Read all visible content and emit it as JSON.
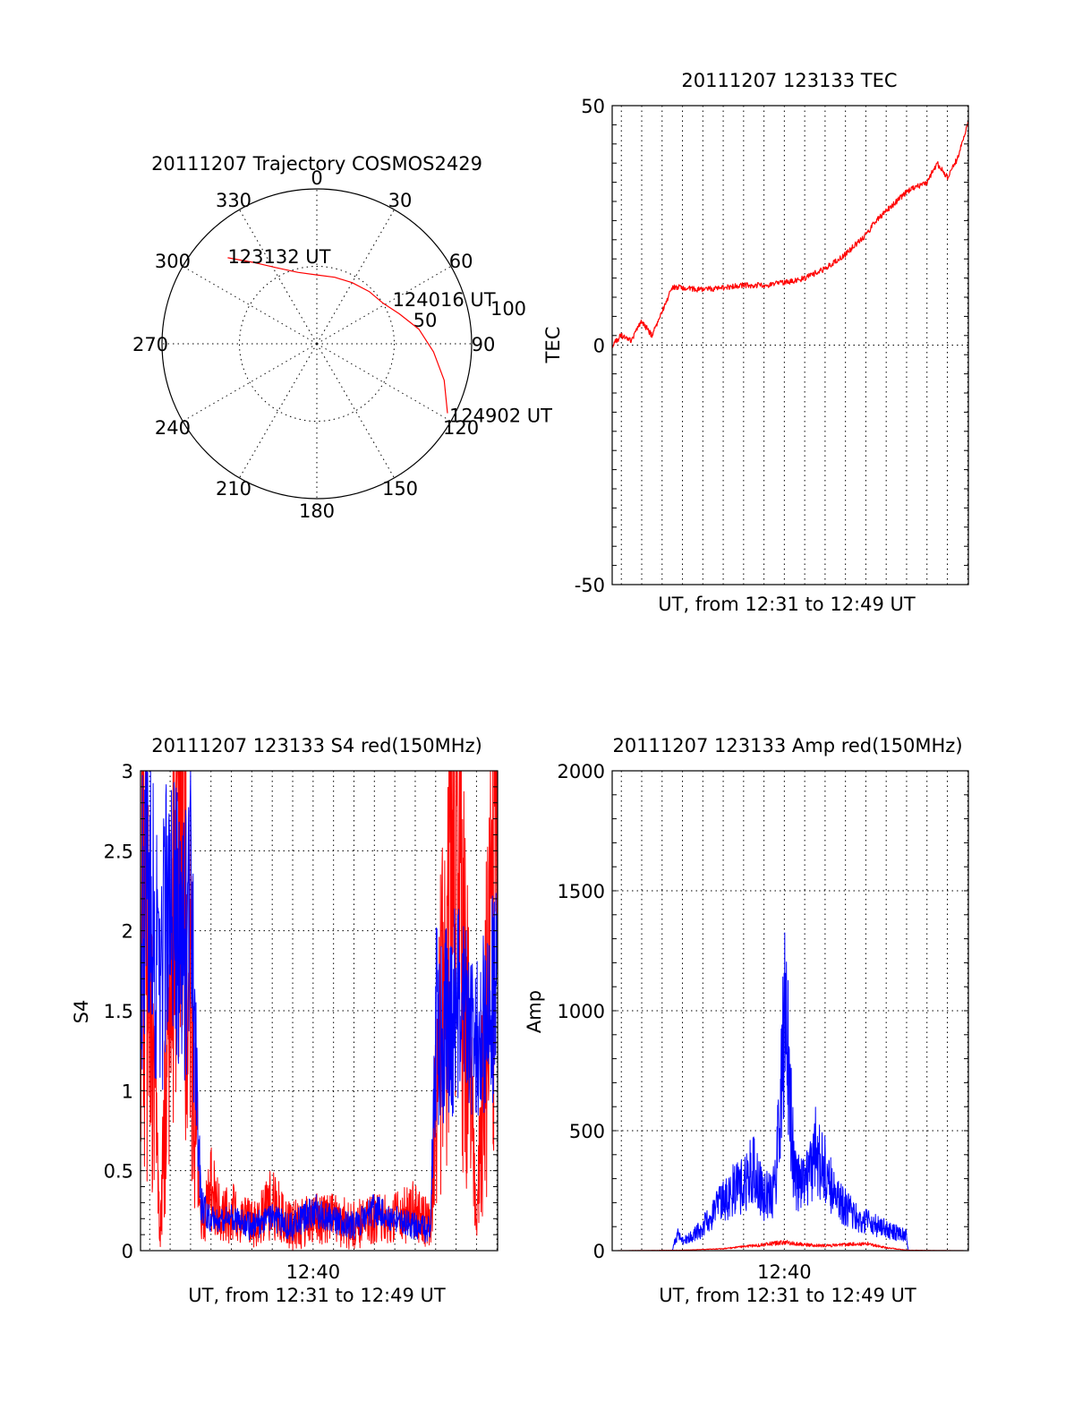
{
  "colors": {
    "red": "#ff0000",
    "blue": "#0000ff",
    "axis": "#000000"
  },
  "chart_data": [
    {
      "type": "polar",
      "title": "20111207 Trajectory COSMOS2429",
      "angle_ticks": [
        "0",
        "30",
        "60",
        "90",
        "120",
        "150",
        "180",
        "210",
        "240",
        "270",
        "300",
        "330"
      ],
      "radius_ticks": [
        "50",
        "100"
      ],
      "rlim": [
        0,
        100
      ],
      "grid": true,
      "series": [
        {
          "color": "#ff0000",
          "points": [
            {
              "azimuth": 314,
              "elevation": 18
            },
            {
              "azimuth": 322,
              "elevation": 30
            },
            {
              "azimuth": 332,
              "elevation": 40
            },
            {
              "azimuth": 345,
              "elevation": 47
            },
            {
              "azimuth": 0,
              "elevation": 50
            },
            {
              "azimuth": 15,
              "elevation": 50
            },
            {
              "azimuth": 30,
              "elevation": 49
            },
            {
              "azimuth": 45,
              "elevation": 47
            },
            {
              "azimuth": 58,
              "elevation": 45
            },
            {
              "azimuth": 70,
              "elevation": 39
            },
            {
              "azimuth": 82,
              "elevation": 30
            },
            {
              "azimuth": 94,
              "elevation": 22
            },
            {
              "azimuth": 106,
              "elevation": 13
            },
            {
              "azimuth": 118,
              "elevation": 4
            }
          ]
        }
      ],
      "annotations": [
        {
          "text": "123132 UT",
          "azimuth": 314,
          "elevation": 18
        },
        {
          "text": "124016 UT",
          "azimuth": 60,
          "elevation": 44
        },
        {
          "text": "124902 UT",
          "azimuth": 118,
          "elevation": 4
        }
      ]
    },
    {
      "type": "line",
      "title": "20111207 123133 TEC",
      "xlabel": "UT, from 12:31 to 12:49 UT",
      "ylabel": "TEC",
      "xlim": [
        "12:31:33",
        "12:49:02"
      ],
      "ylim": [
        -50,
        50
      ],
      "y_ticks": [
        -50,
        0,
        50
      ],
      "grid": true,
      "series": [
        {
          "color": "#ff0000",
          "x": [
            "12:31:33",
            "12:32:00",
            "12:32:30",
            "12:33:00",
            "12:33:30",
            "12:34:00",
            "12:34:30",
            "12:35:00",
            "12:36:00",
            "12:37:00",
            "12:38:00",
            "12:39:00",
            "12:40:00",
            "12:41:00",
            "12:42:00",
            "12:43:00",
            "12:44:00",
            "12:44:30",
            "12:45:00",
            "12:45:30",
            "12:46:00",
            "12:46:30",
            "12:47:00",
            "12:47:30",
            "12:48:00",
            "12:48:30",
            "12:49:00"
          ],
          "values": [
            0,
            2,
            1,
            5,
            2,
            7,
            12,
            12,
            11.5,
            12,
            12.5,
            12.5,
            13,
            14,
            16,
            19,
            23,
            26,
            28,
            30,
            32,
            33,
            34,
            38,
            35,
            39,
            46
          ]
        }
      ]
    },
    {
      "type": "line",
      "title": "20111207 123133 S4 red(150MHz)",
      "xlabel": "UT, from 12:31 to 12:49 UT",
      "ylabel": "S4",
      "xlim": [
        "12:31:33",
        "12:49:02"
      ],
      "ylim": [
        0,
        3
      ],
      "y_ticks": [
        "0",
        "0.5",
        "1",
        "1.5",
        "2",
        "2.5",
        "3"
      ],
      "x_ticks": [
        "12:40"
      ],
      "grid": true,
      "series": [
        {
          "color": "#ff0000",
          "x": [
            "12:31:33",
            "12:32:30",
            "12:33:30",
            "12:34:30",
            "12:35:00",
            "12:35:30",
            "12:36:00",
            "12:37:00",
            "12:38:00",
            "12:39:00",
            "12:40:00",
            "12:41:00",
            "12:42:00",
            "12:43:00",
            "12:44:00",
            "12:45:00",
            "12:45:45",
            "12:46:00",
            "12:47:00",
            "12:48:00",
            "12:49:00"
          ],
          "values": [
            3,
            0.1,
            3,
            0.1,
            0.4,
            0.2,
            0.25,
            0.15,
            0.3,
            0.15,
            0.2,
            0.2,
            0.15,
            0.2,
            0.2,
            0.25,
            0.15,
            0.8,
            3,
            0.1,
            3
          ]
        },
        {
          "color": "#0000ff",
          "x": [
            "12:31:33",
            "12:32:00",
            "12:32:30",
            "12:33:00",
            "12:33:30",
            "12:34:00",
            "12:34:30",
            "12:35:00",
            "12:36:00",
            "12:37:00",
            "12:38:00",
            "12:39:00",
            "12:40:00",
            "12:41:00",
            "12:42:00",
            "12:43:00",
            "12:44:00",
            "12:45:00",
            "12:45:45",
            "12:46:00",
            "12:47:00",
            "12:48:00",
            "12:49:00"
          ],
          "values": [
            2.0,
            2.3,
            1.6,
            2.4,
            1.8,
            2.1,
            0.3,
            0.2,
            0.2,
            0.15,
            0.2,
            0.15,
            0.25,
            0.2,
            0.15,
            0.25,
            0.2,
            0.15,
            0.12,
            1.4,
            1.5,
            1.3,
            1.6
          ]
        }
      ]
    },
    {
      "type": "line",
      "title": "20111207 123133 Amp red(150MHz)",
      "xlabel": "UT, from 12:31 to 12:49 UT",
      "ylabel": "Amp",
      "xlim": [
        "12:31:33",
        "12:49:02"
      ],
      "ylim": [
        0,
        2000
      ],
      "y_ticks": [
        "0",
        "500",
        "1000",
        "1500",
        "2000"
      ],
      "x_ticks": [
        "12:40"
      ],
      "grid": true,
      "series": [
        {
          "color": "#0000ff",
          "x": [
            "12:31:33",
            "12:34:30",
            "12:34:45",
            "12:35:00",
            "12:35:30",
            "12:36:00",
            "12:36:30",
            "12:37:00",
            "12:37:30",
            "12:38:00",
            "12:38:30",
            "12:39:00",
            "12:39:30",
            "12:39:45",
            "12:40:00",
            "12:40:15",
            "12:40:30",
            "12:41:00",
            "12:41:30",
            "12:42:00",
            "12:42:30",
            "12:43:00",
            "12:43:30",
            "12:44:00",
            "12:45:00",
            "12:46:00",
            "12:46:05",
            "12:49:02"
          ],
          "values": [
            0,
            0,
            70,
            40,
            60,
            100,
            160,
            200,
            260,
            270,
            360,
            220,
            250,
            500,
            1000,
            700,
            300,
            260,
            420,
            330,
            220,
            180,
            140,
            120,
            90,
            60,
            0,
            0
          ]
        },
        {
          "color": "#ff0000",
          "x": [
            "12:31:33",
            "12:35:00",
            "12:37:00",
            "12:39:00",
            "12:40:00",
            "12:41:00",
            "12:42:00",
            "12:43:00",
            "12:44:00",
            "12:45:00",
            "12:46:00",
            "12:49:02"
          ],
          "values": [
            0,
            2,
            8,
            25,
            35,
            25,
            20,
            25,
            30,
            12,
            2,
            0
          ]
        }
      ]
    }
  ]
}
